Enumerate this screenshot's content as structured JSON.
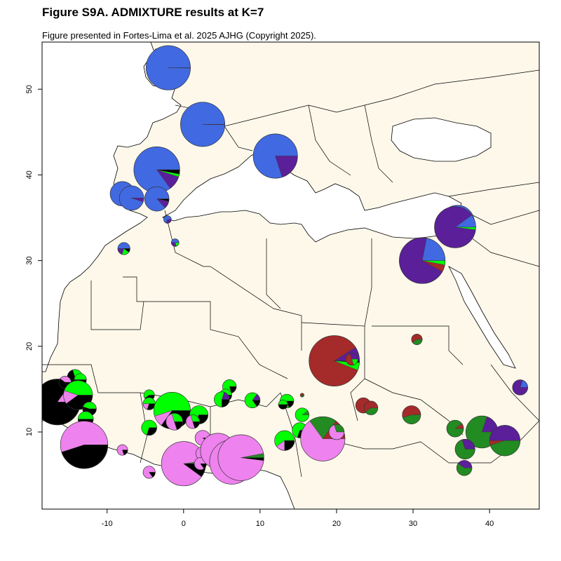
{
  "title": "Figure S9A. ADMIXTURE results at K=7",
  "subtitle": "Figure presented in Fortes-Lima et al. 2025 AJHG (Copyright 2025).",
  "map": {
    "x_range": [
      -18.5,
      46.5
    ],
    "y_range": [
      1,
      55.5
    ],
    "x_ticks": [
      -10,
      0,
      10,
      20,
      30,
      40
    ],
    "y_ticks": [
      10,
      20,
      30,
      40,
      50
    ],
    "colors": {
      "land": "#fdf8ea",
      "sea": "#ffffff",
      "border": "#000000"
    }
  },
  "components": {
    "blue": "#4169e1",
    "purple": "#5b1f99",
    "red": "#a52a2a",
    "green": "#228b22",
    "lime": "#00ff00",
    "pink": "#ee82ee",
    "black": "#000000"
  },
  "pies": [
    {
      "lon": -2,
      "lat": 52.5,
      "size": 2.9,
      "parts": {
        "blue": 0.998,
        "purple": 0.002
      }
    },
    {
      "lon": 2.5,
      "lat": 45.9,
      "size": 2.9,
      "parts": {
        "blue": 0.997,
        "purple": 0.003
      }
    },
    {
      "lon": 12,
      "lat": 42.2,
      "size": 2.9,
      "parts": {
        "blue": 0.8,
        "purple": 0.2
      }
    },
    {
      "lon": -3.5,
      "lat": 40.6,
      "size": 3.0,
      "parts": {
        "blue": 0.85,
        "purple": 0.1,
        "black": 0.03,
        "lime": 0.02
      }
    },
    {
      "lon": -8,
      "lat": 37.8,
      "size": 1.6,
      "parts": {
        "blue": 0.99,
        "purple": 0.01
      }
    },
    {
      "lon": -6.8,
      "lat": 37.3,
      "size": 1.6,
      "parts": {
        "blue": 0.95,
        "purple": 0.05
      }
    },
    {
      "lon": -3.5,
      "lat": 37.2,
      "size": 1.6,
      "parts": {
        "blue": 0.87,
        "purple": 0.1,
        "black": 0.03
      }
    },
    {
      "lon": -2.1,
      "lat": 34.8,
      "size": 0.5,
      "parts": {
        "blue": 0.7,
        "purple": 0.3
      }
    },
    {
      "lon": -1.1,
      "lat": 32.1,
      "size": 0.5,
      "parts": {
        "blue": 0.5,
        "purple": 0.3,
        "lime": 0.2
      }
    },
    {
      "lon": -7.8,
      "lat": 31.4,
      "size": 0.8,
      "parts": {
        "blue": 0.5,
        "purple": 0.2,
        "lime": 0.2,
        "black": 0.1
      }
    },
    {
      "lon": 35.8,
      "lat": 34.5,
      "size": 2.2,
      "parts": {
        "blue": 0.99,
        "purple": 0.01
      }
    },
    {
      "lon": 35.5,
      "lat": 33.9,
      "size": 2.7,
      "parts": {
        "purple": 0.88,
        "blue": 0.1,
        "lime": 0.02
      }
    },
    {
      "lon": 31.2,
      "lat": 30.0,
      "size": 3.0,
      "parts": {
        "purple": 0.7,
        "blue": 0.22,
        "red": 0.05,
        "lime": 0.03
      }
    },
    {
      "lon": 19.7,
      "lat": 18.3,
      "size": 3.3,
      "parts": {
        "red": 0.85,
        "purple": 0.09,
        "lime": 0.05,
        "black": 0.01
      }
    },
    {
      "lon": 22,
      "lat": 18.5,
      "size": 0.8,
      "parts": {
        "red": 0.5,
        "purple": 0.3,
        "lime": 0.2
      }
    },
    {
      "lon": 30.5,
      "lat": 20.8,
      "size": 0.7,
      "parts": {
        "red": 0.6,
        "green": 0.4
      }
    },
    {
      "lon": 44,
      "lat": 15.2,
      "size": 1.0,
      "parts": {
        "purple": 0.8,
        "blue": 0.2
      }
    },
    {
      "lon": 23.5,
      "lat": 13.1,
      "size": 1.0,
      "parts": {
        "red": 0.85,
        "green": 0.15
      }
    },
    {
      "lon": 24.5,
      "lat": 12.8,
      "size": 0.9,
      "parts": {
        "red": 0.6,
        "green": 0.4
      }
    },
    {
      "lon": 29.8,
      "lat": 12.0,
      "size": 1.2,
      "parts": {
        "red": 0.55,
        "green": 0.45
      }
    },
    {
      "lon": 35.5,
      "lat": 10.4,
      "size": 1.1,
      "parts": {
        "green": 0.9,
        "red": 0.1
      }
    },
    {
      "lon": 39,
      "lat": 10.0,
      "size": 2.1,
      "parts": {
        "green": 0.8,
        "purple": 0.2
      }
    },
    {
      "lon": 42,
      "lat": 9.0,
      "size": 2.0,
      "parts": {
        "purple": 0.5,
        "green": 0.45,
        "red": 0.05
      }
    },
    {
      "lon": 36.8,
      "lat": 8.0,
      "size": 1.3,
      "parts": {
        "green": 0.7,
        "purple": 0.3
      }
    },
    {
      "lon": 36.7,
      "lat": 5.8,
      "size": 1.0,
      "parts": {
        "green": 0.6,
        "purple": 0.4
      }
    },
    {
      "lon": -16.5,
      "lat": 13.5,
      "size": 3.0,
      "parts": {
        "black": 0.85,
        "pink": 0.15
      }
    },
    {
      "lon": -14.2,
      "lat": 16.4,
      "size": 1.0,
      "parts": {
        "black": 0.7,
        "lime": 0.3
      }
    },
    {
      "lon": -15.5,
      "lat": 15.8,
      "size": 0.8,
      "parts": {
        "black": 0.6,
        "pink": 0.4
      }
    },
    {
      "lon": -13.5,
      "lat": 16.1,
      "size": 0.8,
      "parts": {
        "lime": 0.5,
        "black": 0.5
      }
    },
    {
      "lon": -13.8,
      "lat": 14.3,
      "size": 1.9,
      "parts": {
        "lime": 0.45,
        "black": 0.4,
        "pink": 0.15
      }
    },
    {
      "lon": -12.3,
      "lat": 12.7,
      "size": 0.9,
      "parts": {
        "black": 0.55,
        "lime": 0.45
      }
    },
    {
      "lon": -12.8,
      "lat": 11.5,
      "size": 1.0,
      "parts": {
        "black": 0.5,
        "lime": 0.5
      }
    },
    {
      "lon": -13,
      "lat": 8.5,
      "size": 3.1,
      "parts": {
        "pink": 0.55,
        "black": 0.45
      }
    },
    {
      "lon": -8,
      "lat": 7.9,
      "size": 0.7,
      "parts": {
        "pink": 0.8,
        "black": 0.2
      }
    },
    {
      "lon": -4.5,
      "lat": 14.3,
      "size": 0.7,
      "parts": {
        "lime": 0.6,
        "black": 0.4
      }
    },
    {
      "lon": -4.5,
      "lat": 13.3,
      "size": 0.8,
      "parts": {
        "lime": 0.5,
        "black": 0.3,
        "pink": 0.2
      }
    },
    {
      "lon": -1.5,
      "lat": 12.5,
      "size": 2.4,
      "parts": {
        "lime": 0.55,
        "black": 0.35,
        "pink": 0.1
      }
    },
    {
      "lon": -1.2,
      "lat": 11.2,
      "size": 1.1,
      "parts": {
        "pink": 0.5,
        "lime": 0.3,
        "black": 0.2
      }
    },
    {
      "lon": 2,
      "lat": 12.0,
      "size": 1.2,
      "parts": {
        "lime": 0.6,
        "black": 0.3,
        "pink": 0.1
      }
    },
    {
      "lon": 1.2,
      "lat": 11.2,
      "size": 0.9,
      "parts": {
        "pink": 0.5,
        "lime": 0.3,
        "black": 0.2
      }
    },
    {
      "lon": -4.5,
      "lat": 10.5,
      "size": 1.0,
      "parts": {
        "lime": 0.7,
        "black": 0.3
      }
    },
    {
      "lon": -4.5,
      "lat": 5.3,
      "size": 0.8,
      "parts": {
        "pink": 0.85,
        "black": 0.15
      }
    },
    {
      "lon": 0,
      "lat": 6.3,
      "size": 2.9,
      "parts": {
        "pink": 0.88,
        "black": 0.1,
        "green": 0.02
      }
    },
    {
      "lon": 2.5,
      "lat": 9.3,
      "size": 1.0,
      "parts": {
        "pink": 0.9,
        "black": 0.1
      }
    },
    {
      "lon": 2.5,
      "lat": 7.5,
      "size": 0.9,
      "parts": {
        "pink": 0.8,
        "black": 0.2
      }
    },
    {
      "lon": 2.2,
      "lat": 6.3,
      "size": 0.8,
      "parts": {
        "pink": 0.85,
        "black": 0.15
      }
    },
    {
      "lon": 4.5,
      "lat": 7.8,
      "size": 2.3,
      "parts": {
        "pink": 0.95,
        "black": 0.05
      }
    },
    {
      "lon": 6.3,
      "lat": 6.5,
      "size": 2.9,
      "parts": {
        "pink": 0.95,
        "black": 0.03,
        "green": 0.02
      }
    },
    {
      "lon": 7.5,
      "lat": 7.0,
      "size": 3.0,
      "parts": {
        "pink": 0.95,
        "green": 0.03,
        "black": 0.02
      }
    },
    {
      "lon": 6.0,
      "lat": 15.3,
      "size": 0.9,
      "parts": {
        "lime": 0.8,
        "black": 0.2
      }
    },
    {
      "lon": 5.5,
      "lat": 14.3,
      "size": 0.8,
      "parts": {
        "lime": 0.6,
        "pink": 0.25,
        "black": 0.15
      }
    },
    {
      "lon": 5.0,
      "lat": 13.8,
      "size": 1.0,
      "parts": {
        "lime": 0.55,
        "black": 0.25,
        "purple": 0.2
      }
    },
    {
      "lon": 9,
      "lat": 13.7,
      "size": 1.0,
      "parts": {
        "lime": 0.7,
        "black": 0.15,
        "purple": 0.15
      }
    },
    {
      "lon": 13.5,
      "lat": 13.6,
      "size": 0.9,
      "parts": {
        "lime": 0.8,
        "black": 0.2
      }
    },
    {
      "lon": 13.0,
      "lat": 13.2,
      "size": 0.6,
      "parts": {
        "lime": 0.5,
        "black": 0.5
      }
    },
    {
      "lon": 15.5,
      "lat": 14.3,
      "size": 0.25,
      "parts": {
        "red": 0.7,
        "green": 0.3
      }
    },
    {
      "lon": 15.5,
      "lat": 12.0,
      "size": 0.9,
      "parts": {
        "lime": 0.9,
        "green": 0.1
      }
    },
    {
      "lon": 15.2,
      "lat": 10.2,
      "size": 1.0,
      "parts": {
        "lime": 0.7,
        "black": 0.3
      }
    },
    {
      "lon": 13.2,
      "lat": 9.0,
      "size": 1.3,
      "parts": {
        "lime": 0.6,
        "black": 0.25,
        "pink": 0.15
      }
    },
    {
      "lon": 18.2,
      "lat": 9.2,
      "size": 2.9,
      "parts": {
        "pink": 0.65,
        "green": 0.2,
        "red": 0.15
      }
    },
    {
      "lon": 20,
      "lat": 10.0,
      "size": 1.0,
      "parts": {
        "pink": 0.7,
        "green": 0.3
      }
    }
  ]
}
